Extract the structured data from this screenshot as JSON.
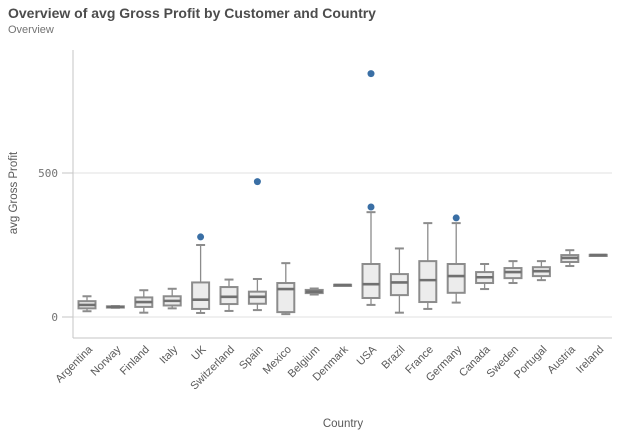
{
  "header": {
    "title": "Overview of avg Gross Profit by Customer and Country",
    "subtitle": "Overview"
  },
  "chart_data": {
    "type": "boxplot",
    "title": "Overview of avg Gross Profit by Customer and Country",
    "xlabel": "Country",
    "ylabel": "avg Gross Profit",
    "y_ticks": [
      0,
      500
    ],
    "ylim": [
      -70,
      930
    ],
    "grid": true,
    "legend": false,
    "categories": [
      "Argentina",
      "Norway",
      "Finland",
      "Italy",
      "UK",
      "Switzerland",
      "Spain",
      "Mexico",
      "Belgium",
      "Denmark",
      "USA",
      "Brazil",
      "France",
      "Germany",
      "Canada",
      "Sweden",
      "Portugal",
      "Austria",
      "Ireland"
    ],
    "boxes": [
      {
        "country": "Argentina",
        "min": 20,
        "q1": 30,
        "median": 42,
        "q3": 55,
        "max": 72,
        "outliers": []
      },
      {
        "country": "Norway",
        "min": 32,
        "q1": 33,
        "median": 35,
        "q3": 37,
        "max": 38,
        "outliers": []
      },
      {
        "country": "Finland",
        "min": 15,
        "q1": 35,
        "median": 52,
        "q3": 68,
        "max": 93,
        "outliers": []
      },
      {
        "country": "Italy",
        "min": 30,
        "q1": 40,
        "median": 56,
        "q3": 72,
        "max": 98,
        "outliers": []
      },
      {
        "country": "UK",
        "min": 14,
        "q1": 28,
        "median": 60,
        "q3": 120,
        "max": 250,
        "outliers": [
          278
        ]
      },
      {
        "country": "Switzerland",
        "min": 21,
        "q1": 45,
        "median": 70,
        "q3": 104,
        "max": 130,
        "outliers": []
      },
      {
        "country": "Spain",
        "min": 24,
        "q1": 46,
        "median": 70,
        "q3": 88,
        "max": 132,
        "outliers": [
          470
        ]
      },
      {
        "country": "Mexico",
        "min": 10,
        "q1": 17,
        "median": 97,
        "q3": 118,
        "max": 187,
        "outliers": []
      },
      {
        "country": "Belgium",
        "min": 78,
        "q1": 83,
        "median": 88,
        "q3": 94,
        "max": 99,
        "outliers": []
      },
      {
        "country": "Denmark",
        "min": 110,
        "q1": 110,
        "median": 111,
        "q3": 112,
        "max": 112,
        "outliers": []
      },
      {
        "country": "USA",
        "min": 42,
        "q1": 66,
        "median": 114,
        "q3": 184,
        "max": 364,
        "outliers": [
          382,
          845
        ]
      },
      {
        "country": "Brazil",
        "min": 15,
        "q1": 76,
        "median": 120,
        "q3": 149,
        "max": 238,
        "outliers": []
      },
      {
        "country": "France",
        "min": 28,
        "q1": 52,
        "median": 128,
        "q3": 194,
        "max": 326,
        "outliers": []
      },
      {
        "country": "Germany",
        "min": 50,
        "q1": 84,
        "median": 142,
        "q3": 184,
        "max": 326,
        "outliers": [
          344
        ]
      },
      {
        "country": "Canada",
        "min": 97,
        "q1": 118,
        "median": 138,
        "q3": 156,
        "max": 184,
        "outliers": []
      },
      {
        "country": "Sweden",
        "min": 118,
        "q1": 135,
        "median": 156,
        "q3": 170,
        "max": 194,
        "outliers": []
      },
      {
        "country": "Portugal",
        "min": 128,
        "q1": 142,
        "median": 159,
        "q3": 173,
        "max": 194,
        "outliers": []
      },
      {
        "country": "Austria",
        "min": 177,
        "q1": 191,
        "median": 205,
        "q3": 215,
        "max": 232,
        "outliers": []
      },
      {
        "country": "Ireland",
        "min": 214,
        "q1": 214,
        "median": 215,
        "q3": 216,
        "max": 216,
        "outliers": []
      }
    ]
  },
  "colors": {
    "background": "#ffffff",
    "title": "#4c4c4c",
    "subtitle": "#737373",
    "axis_line": "#c6c6c6",
    "gridline": "#e2e2e2",
    "tick_mark": "#c6c6c6",
    "tick_label": "#737373",
    "axis_title": "#595959",
    "category_label": "#595959",
    "box_fill": "#ececec",
    "box_border": "#8c8c8c",
    "median_line": "#707070",
    "whisker": "#8c8c8c",
    "outlier_dot": "#3a6fa5"
  }
}
